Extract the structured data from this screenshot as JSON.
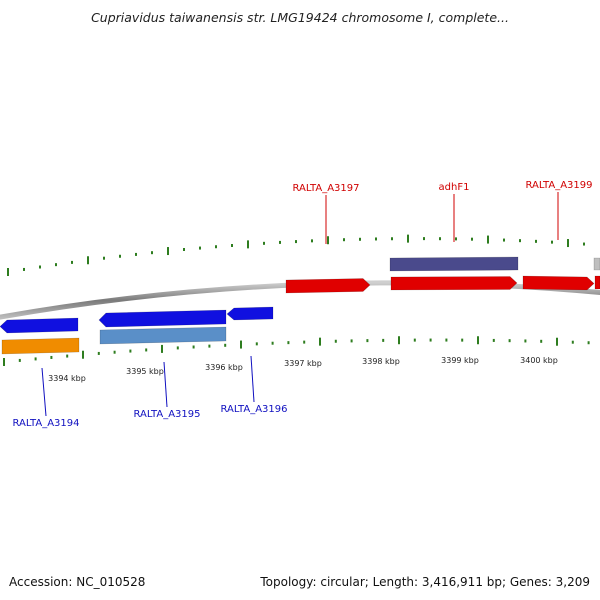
{
  "title": "Cupriavidus taiwanensis str. LMG19424 chromosome I, complete...",
  "footer": {
    "accession": "Accession: NC_010528",
    "summary": "Topology: circular; Length: 3,416,911 bp; Genes: 3,209"
  },
  "colors": {
    "backbone": "#8a8a8a",
    "tick": "#2e7d1f",
    "forward_gene": "#e00000",
    "forward_cds": "#e00000",
    "reverse_gene": "#1010e0",
    "rna_feature": "#4a4a8c",
    "reverse_cds_orange": "#f08c00",
    "reverse_cds_steel": "#5a8fc8",
    "label_forward": "#d00000",
    "label_reverse": "#1010c0"
  },
  "axis": {
    "unit": "kbp",
    "ticks": [
      {
        "value": 3394,
        "label": "3394 kbp"
      },
      {
        "value": 3395,
        "label": "3395 kbp"
      },
      {
        "value": 3396,
        "label": "3396 kbp"
      },
      {
        "value": 3397,
        "label": "3397 kbp"
      },
      {
        "value": 3398,
        "label": "3398 kbp"
      },
      {
        "value": 3399,
        "label": "3399 kbp"
      },
      {
        "value": 3400,
        "label": "3400 kbp"
      }
    ]
  },
  "gene_labels": [
    {
      "name": "RALTA_A3197",
      "strand": "forward"
    },
    {
      "name": "adhF1",
      "strand": "forward"
    },
    {
      "name": "RALTA_A3199",
      "strand": "forward"
    },
    {
      "name": "RALTA_A3194",
      "strand": "reverse"
    },
    {
      "name": "RALTA_A3195",
      "strand": "reverse"
    },
    {
      "name": "RALTA_A3196",
      "strand": "reverse"
    }
  ]
}
